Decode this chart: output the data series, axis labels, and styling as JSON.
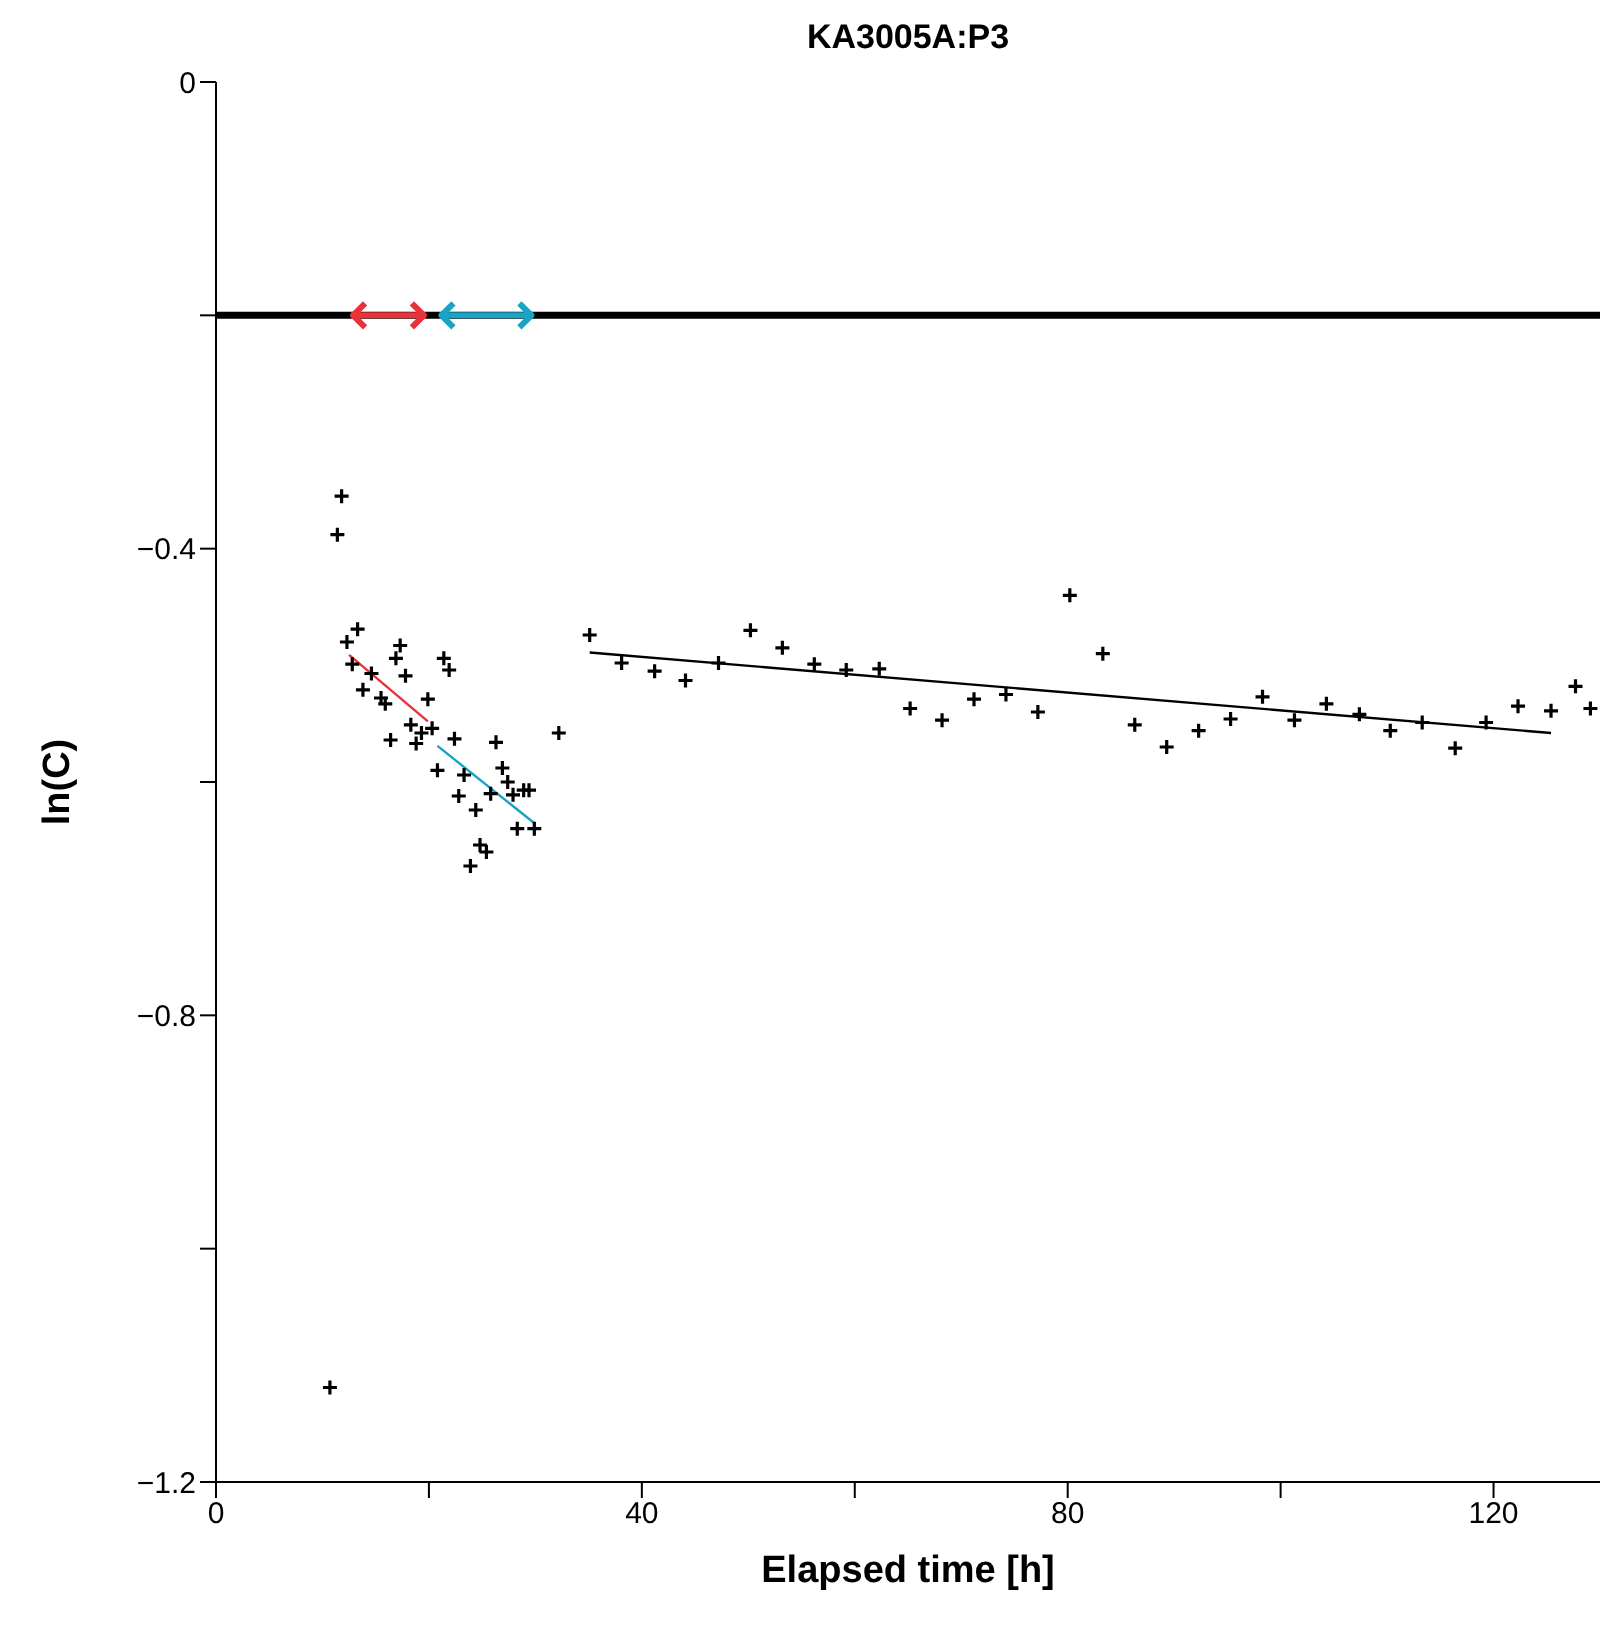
{
  "chart_data": {
    "type": "scatter",
    "title": "KA3005A:P3",
    "xlabel": "Elapsed time [h]",
    "ylabel": "ln(C)",
    "xlim": [
      0,
      130
    ],
    "ylim": [
      -1.2,
      0
    ],
    "xticks": [
      0,
      {
        "value": 20,
        "label": null
      },
      40,
      {
        "value": 60,
        "label": null
      },
      80,
      {
        "value": 100,
        "label": null
      },
      120
    ],
    "yticks": [
      {
        "value": 0,
        "label": "0"
      },
      {
        "value": -0.2,
        "label": null
      },
      {
        "value": -0.4,
        "label": "−0.4"
      },
      {
        "value": -0.6,
        "label": null
      },
      {
        "value": -0.8,
        "label": "−0.8"
      },
      {
        "value": -1.0,
        "label": null
      },
      {
        "value": -1.2,
        "label": "−1.2"
      }
    ],
    "grid": false,
    "series": [
      {
        "color": "#000000",
        "marker": "cross",
        "x": [
          10.7,
          11.4,
          11.8,
          12.3,
          12.8,
          13.3,
          13.8,
          14.6,
          15.5,
          15.9,
          16.4,
          16.9,
          17.3,
          17.8,
          18.3,
          18.8,
          19.3,
          19.9,
          20.3,
          20.8,
          21.4,
          21.9,
          22.4,
          22.8,
          23.3,
          23.9,
          24.4,
          24.8,
          25.4,
          25.8,
          26.3,
          26.9,
          27.4,
          27.9,
          28.3,
          28.9,
          29.4,
          29.9,
          32.2,
          35.1,
          38.1,
          41.2,
          44.1,
          47.2,
          50.2,
          53.2,
          56.2,
          59.2,
          62.3,
          65.2,
          68.2,
          71.2,
          74.2,
          77.2,
          80.2,
          83.3,
          86.3,
          89.3,
          92.3,
          95.3,
          98.3,
          101.3,
          104.3,
          107.4,
          110.3,
          113.3,
          116.4,
          119.3,
          122.3,
          125.4,
          127.7,
          129.1
        ],
        "values": [
          -1.119,
          -0.388,
          -0.355,
          -0.48,
          -0.499,
          -0.469,
          -0.521,
          -0.507,
          -0.528,
          -0.533,
          -0.564,
          -0.494,
          -0.483,
          -0.509,
          -0.551,
          -0.567,
          -0.558,
          -0.529,
          -0.554,
          -0.59,
          -0.494,
          -0.504,
          -0.563,
          -0.612,
          -0.594,
          -0.672,
          -0.624,
          -0.654,
          -0.66,
          -0.61,
          -0.566,
          -0.588,
          -0.6,
          -0.611,
          -0.64,
          -0.607,
          -0.607,
          -0.64,
          -0.558,
          -0.474,
          -0.498,
          -0.505,
          -0.513,
          -0.498,
          -0.47,
          -0.485,
          -0.499,
          -0.504,
          -0.503,
          -0.537,
          -0.547,
          -0.529,
          -0.525,
          -0.54,
          -0.44,
          -0.49,
          -0.551,
          -0.57,
          -0.556,
          -0.546,
          -0.527,
          -0.547,
          -0.533,
          -0.542,
          -0.556,
          -0.549,
          -0.571,
          -0.549,
          -0.535,
          -0.539,
          -0.518,
          -0.537
        ]
      },
      {
        "type": "line",
        "color": "#e8333a",
        "marker": "none",
        "x": [
          12.5,
          19.9
        ],
        "values": [
          -0.491,
          -0.548
        ]
      },
      {
        "type": "line",
        "color": "#1ba3c6",
        "marker": "none",
        "x": [
          20.8,
          30.0
        ],
        "values": [
          -0.569,
          -0.636
        ]
      },
      {
        "type": "line",
        "color": "#000000",
        "marker": "none",
        "x": [
          35.1,
          125.4
        ],
        "values": [
          -0.489,
          -0.558
        ]
      }
    ],
    "ref_lines": [
      {
        "axis": "y",
        "value": -0.2,
        "color": "#000000"
      }
    ]
  }
}
